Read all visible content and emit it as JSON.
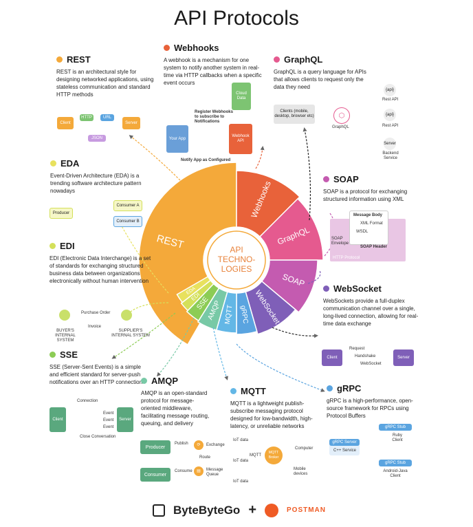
{
  "title": "API Protocols",
  "colors": {
    "rest": "#f4a93a",
    "webhooks": "#e8623a",
    "graphql": "#e55a8f",
    "soap": "#c45bb0",
    "websocket": "#7f5fb8",
    "grpc": "#5aa4e0",
    "mqtt": "#63b7e6",
    "amqp": "#78c9a6",
    "sse": "#8ccc55",
    "edi": "#d4e05a",
    "eda": "#e8e15e"
  },
  "wheel": {
    "center_lines": [
      "API",
      "TECHNO-",
      "LOGIES"
    ],
    "segments": [
      "REST",
      "Webhooks",
      "GraphQL",
      "SOAP",
      "WebSocket",
      "gRPC",
      "MQTT",
      "AMQP",
      "SSE",
      "EDI",
      "EDA"
    ]
  },
  "rest": {
    "title": "REST",
    "desc": "REST is an architectural style for designing networked applications, using stateless communication and standard HTTP methods",
    "diagram": {
      "client": "Client",
      "http": "HTTP",
      "url": "URL",
      "server": "Server",
      "json": "JSON"
    }
  },
  "webhooks": {
    "title": "Webhooks",
    "desc": "A webhook is a mechanism for one system to notify another system in real-time via HTTP callbacks when a specific event occurs",
    "diagram": {
      "register": "Register Webhooks to subscribe to Notifications",
      "your_app": "Your App",
      "webhook_api": "Webhook API",
      "cloud": "Cloud Data",
      "notify": "Notify App as Configured"
    }
  },
  "graphql": {
    "title": "GraphQL",
    "desc": "GraphQL is a query language for APIs that allows clients to request only the data they need",
    "diagram": {
      "clients": "Clients (mobile, desktop, browser etc)",
      "graphql": "GraphQL",
      "api": "{api}",
      "rest_api": "Rest API",
      "server": "Server",
      "backend": "Backend Service"
    }
  },
  "eda": {
    "title": "EDA",
    "desc": "Event-Driven Architecture (EDA) is a trending software architecture pattern nowadays",
    "diagram": {
      "producer": "Producer",
      "consumer_a": "Consumer A",
      "consumer_b": "Consumer B"
    }
  },
  "soap": {
    "title": "SOAP",
    "desc": "SOAP is a protocol for exchanging structured information using XML",
    "diagram": {
      "body": "Message Body",
      "xml": "XML Format",
      "wsdl": "WSDL",
      "envelope": "SOAP Envelope",
      "header": "SOAP Header",
      "http": "HTTP Protocol"
    }
  },
  "edi": {
    "title": "EDI",
    "desc": "EDI (Electronic Data Interchange) is a set of standards for exchanging structured business data between organizations electronically without human intervention",
    "diagram": {
      "po": "Purchase Order",
      "invoice": "Invoice",
      "buyer": "BUYER'S INTERNAL SYSTEM",
      "supplier": "SUPPLIER'S INTERNAL SYSTEM"
    }
  },
  "websocket": {
    "title": "WebSocket",
    "desc": "WebSockets provide a full-duplex communication channel over a single, long-lived connection, allowing for real-time data exchange",
    "diagram": {
      "client": "Client",
      "server": "Server",
      "request": "Request",
      "handshake": "Handshake",
      "ws": "WebSocket"
    }
  },
  "sse": {
    "title": "SSE",
    "desc": "SSE (Server-Sent Events) is a simple and efficient standard for server-push notifications over an HTTP connection",
    "diagram": {
      "connection": "Connection",
      "client": "Client",
      "server": "Server",
      "event": "Event",
      "close": "Close Conversation"
    }
  },
  "amqp": {
    "title": "AMQP",
    "desc": "AMQP is an open-standard protocol for message-oriented middleware, facilitating message routing, queuing, and delivery",
    "diagram": {
      "producer": "Producer",
      "consumer": "Consumer",
      "publish": "Publish",
      "consume": "Consume",
      "exchange": "Exchange",
      "route": "Route",
      "queue": "Message Queue"
    }
  },
  "mqtt": {
    "title": "MQTT",
    "desc": "MQTT is a lightweight publish-subscribe messaging protocol designed for low-bandwidth, high-latency, or unreliable networks",
    "diagram": {
      "iot": "IoT data",
      "mqtt": "MQTT",
      "broker": "MQTT Broker",
      "computer": "Computer",
      "mobile": "Mobile devices"
    }
  },
  "grpc": {
    "title": "gRPC",
    "desc": "gRPC is a high-performance, open-source framework for RPCs using Protocol Buffers",
    "diagram": {
      "server": "gRPC Server",
      "service": "C++ Service",
      "stub": "gRPC Stub",
      "ruby": "Ruby Client",
      "android": "Android-Java Client"
    }
  },
  "footer": {
    "brand1": "ByteByteGo",
    "plus": "+",
    "brand2": "POSTMAN"
  }
}
